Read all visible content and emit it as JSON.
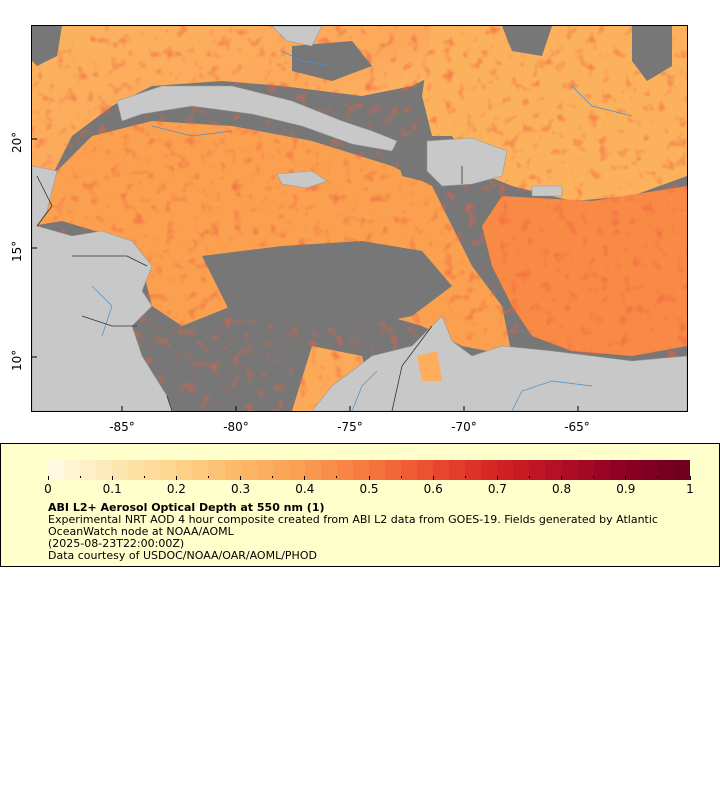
{
  "map": {
    "x_axis_labels": [
      "-85°",
      "-80°",
      "-75°",
      "-70°",
      "-65°"
    ],
    "y_axis_labels": [
      "20°",
      "15°",
      "10°"
    ],
    "colors": {
      "no_data": "#777777",
      "land": "#c8c8c8",
      "rivers": "#4a8fd0",
      "borders": "#333333"
    }
  },
  "legend": {
    "tick_labels": [
      "0",
      "0.1",
      "0.2",
      "0.3",
      "0.4",
      "0.5",
      "0.6",
      "0.7",
      "0.8",
      "0.9",
      "1"
    ],
    "colorscale": [
      "#fffbe6",
      "#fde8b4",
      "#fdd38a",
      "#fcb868",
      "#fb9c50",
      "#f6773e",
      "#ea4b2f",
      "#d42323",
      "#b20d26",
      "#8b0023",
      "#6b001f"
    ],
    "title": "ABI L2+ Aerosol Optical Depth at 550 nm (1)",
    "description": "Experimental NRT AOD 4 hour composite created from ABI L2 data from GOES-19. Fields generated by Atlantic OceanWatch node at NOAA/AOML",
    "timestamp": "(2025-08-23T22:00:00Z)",
    "credit": "Data courtesy of USDOC/NOAA/OAR/AOML/PHOD"
  }
}
